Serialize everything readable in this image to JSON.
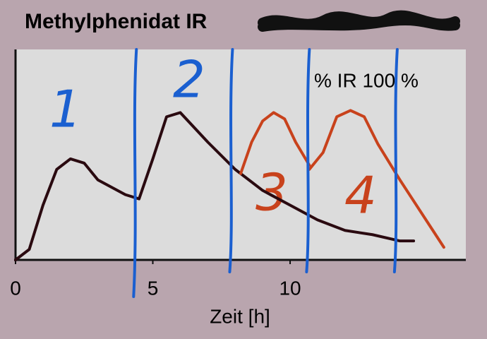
{
  "chart_data": {
    "type": "line",
    "title": "Methylphenidat IR",
    "x_label": "Zeit [h]",
    "annotation": "% IR  100 %",
    "phase_labels": [
      "1",
      "2",
      "3",
      "4"
    ],
    "xlim": [
      0,
      16.4
    ],
    "ylim": [
      0,
      100
    ],
    "xticks": [
      0,
      5,
      10
    ],
    "phase_lines": [
      4.3,
      7.8,
      10.6,
      13.8
    ],
    "phase_color": "#1a5fd0",
    "series": [
      {
        "name": null,
        "color": "#2a0a10",
        "x": [
          0,
          0.5,
          1,
          1.5,
          2,
          2.5,
          3,
          4,
          4.5,
          5,
          5.5,
          6,
          7,
          8,
          9,
          10,
          11,
          12,
          13,
          14,
          14.5
        ],
        "values": [
          0,
          5,
          26,
          43,
          48,
          46,
          38,
          31,
          29,
          48,
          68,
          70,
          56,
          43,
          33,
          26,
          19,
          14,
          12,
          9,
          9
        ]
      },
      {
        "name": null,
        "color": "#c8421c",
        "x": [
          8.2,
          8.6,
          9.0,
          9.4,
          9.8,
          10.2,
          10.7
        ],
        "values": [
          41,
          56,
          66,
          70,
          67,
          56,
          45
        ]
      },
      {
        "name": null,
        "color": "#c8421c",
        "x": [
          10.7,
          11.2,
          11.7,
          12.2,
          12.7,
          13.2,
          14,
          14.5,
          15,
          15.6
        ],
        "values": [
          43,
          51,
          68,
          71,
          68,
          55,
          38,
          28,
          18,
          6
        ]
      }
    ]
  }
}
